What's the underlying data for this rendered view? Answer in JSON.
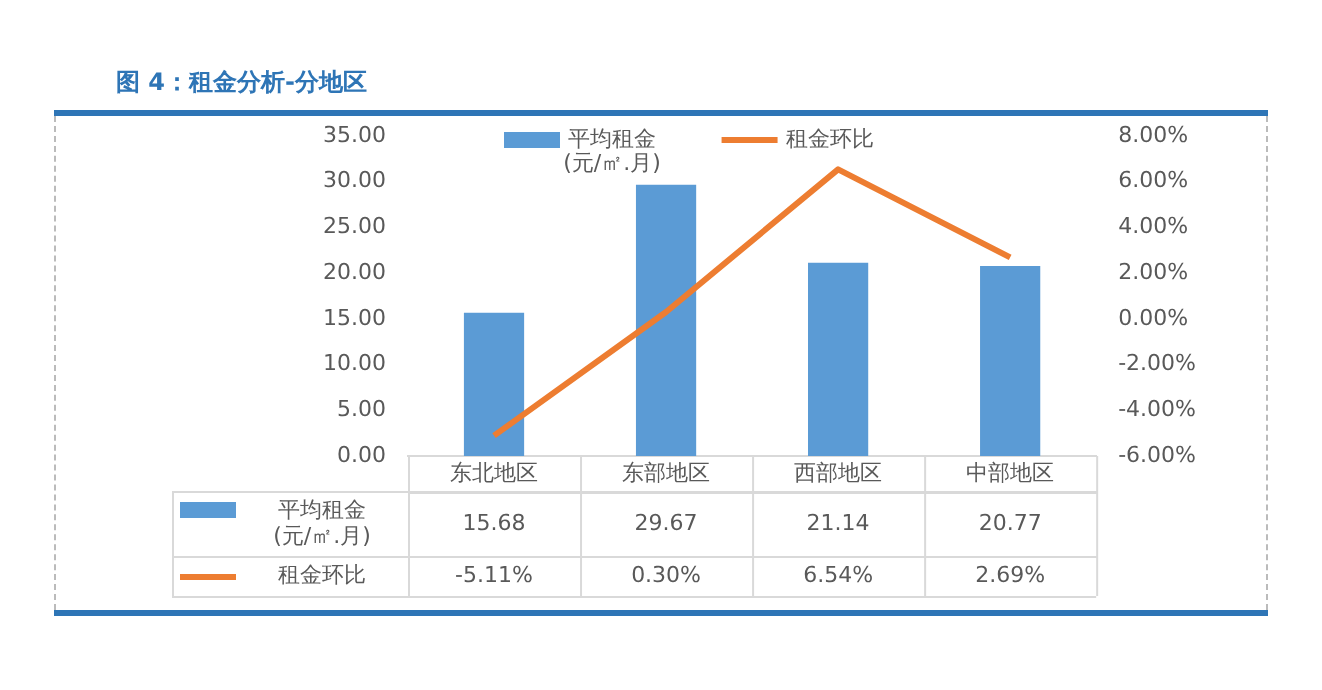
{
  "chart_data": {
    "type": "bar",
    "title": "图 4：租金分析-分地区",
    "categories": [
      "东北地区",
      "东部地区",
      "西部地区",
      "中部地区"
    ],
    "series": [
      {
        "name": "平均租金\n(元/㎡.月)",
        "color": "#5b9bd5",
        "values": [
          15.68,
          29.67,
          21.14,
          20.77
        ]
      },
      {
        "name": "租金环比",
        "type": "line",
        "axis": "y2",
        "color": "#ed7d31",
        "values": [
          -5.11,
          0.3,
          6.54,
          2.69
        ],
        "value_labels": [
          "-5.11%",
          "0.30%",
          "6.54%",
          "2.69%"
        ]
      }
    ],
    "ylim": [
      0,
      35
    ],
    "yticks": [
      {
        "value": 0,
        "label": "0.00"
      },
      {
        "value": 5,
        "label": "5.00"
      },
      {
        "value": 10,
        "label": "10.00"
      },
      {
        "value": 15,
        "label": "15.00"
      },
      {
        "value": 20,
        "label": "20.00"
      },
      {
        "value": 25,
        "label": "25.00"
      },
      {
        "value": 30,
        "label": "30.00"
      },
      {
        "value": 35,
        "label": "35.00"
      }
    ],
    "y2lim": [
      -6,
      8
    ],
    "y2ticks": [
      {
        "value": -6,
        "label": "-6.00%"
      },
      {
        "value": -4,
        "label": "-4.00%"
      },
      {
        "value": -2,
        "label": "-2.00%"
      },
      {
        "value": 0,
        "label": "0.00%"
      },
      {
        "value": 2,
        "label": "2.00%"
      },
      {
        "value": 4,
        "label": "4.00%"
      },
      {
        "value": 6,
        "label": "6.00%"
      },
      {
        "value": 8,
        "label": "8.00%"
      }
    ],
    "data_labels": true,
    "grid": false,
    "legend": "top"
  }
}
